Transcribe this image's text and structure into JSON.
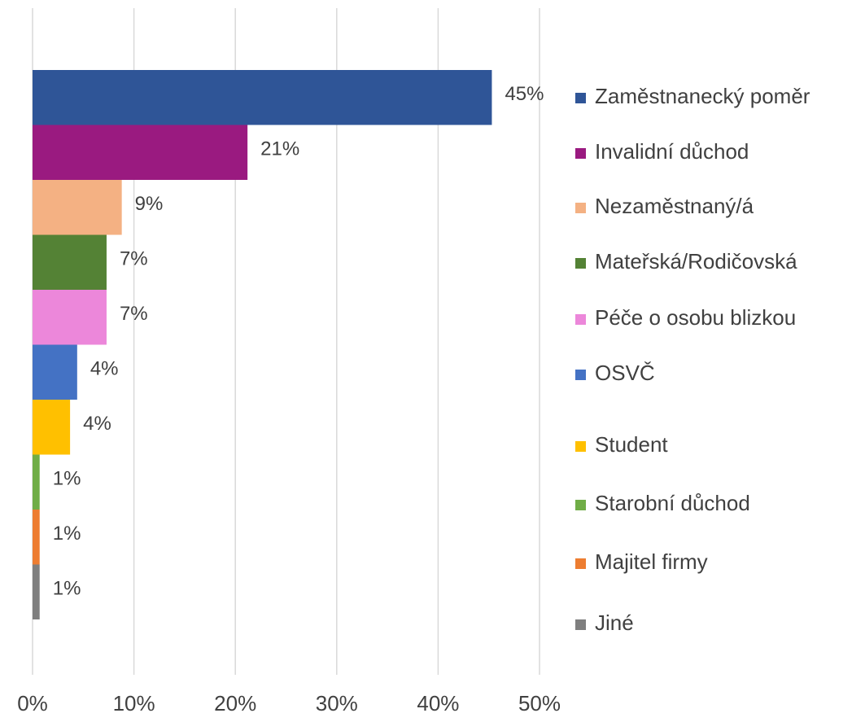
{
  "chart_data": {
    "type": "bar",
    "orientation": "horizontal",
    "series": [
      {
        "name": "Zaměstnanecký poměr",
        "color": "#2f5597",
        "values": [
          45.3
        ],
        "value_labels": [
          "45%"
        ]
      },
      {
        "name": "Invalidní důchod",
        "color": "#9a1a80",
        "values": [
          21.2
        ],
        "value_labels": [
          "21%"
        ]
      },
      {
        "name": "Nezaměstnaný/á",
        "color": "#f4b183",
        "values": [
          8.8
        ],
        "value_labels": [
          "9%"
        ]
      },
      {
        "name": "Mateřská/Rodičovská",
        "color": "#548235",
        "values": [
          7.3
        ],
        "value_labels": [
          "7%"
        ]
      },
      {
        "name": "Péče o osobu blizkou",
        "color": "#ec87da",
        "values": [
          7.3
        ],
        "value_labels": [
          "7%"
        ]
      },
      {
        "name": "OSVČ",
        "color": "#4472c4",
        "values": [
          4.4
        ],
        "value_labels": [
          "4%"
        ]
      },
      {
        "name": "Student",
        "color": "#ffc000",
        "values": [
          3.7
        ],
        "value_labels": [
          "4%"
        ]
      },
      {
        "name": "Starobní důchod",
        "color": "#70ad47",
        "values": [
          0.7
        ],
        "value_labels": [
          "1%"
        ]
      },
      {
        "name": "Majitel firmy",
        "color": "#ed7d31",
        "values": [
          0.7
        ],
        "value_labels": [
          "1%"
        ]
      },
      {
        "name": "Jiné",
        "color": "#7f7f7f",
        "values": [
          0.7
        ],
        "value_labels": [
          "1%"
        ]
      }
    ],
    "xlim": [
      0,
      50
    ],
    "xticks": [
      {
        "value": 0,
        "label": "0%"
      },
      {
        "value": 10,
        "label": "10%"
      },
      {
        "value": 20,
        "label": "20%"
      },
      {
        "value": 30,
        "label": "30%"
      },
      {
        "value": 40,
        "label": "40%"
      },
      {
        "value": 50,
        "label": "50%"
      }
    ],
    "grid": true,
    "legend": "right"
  }
}
